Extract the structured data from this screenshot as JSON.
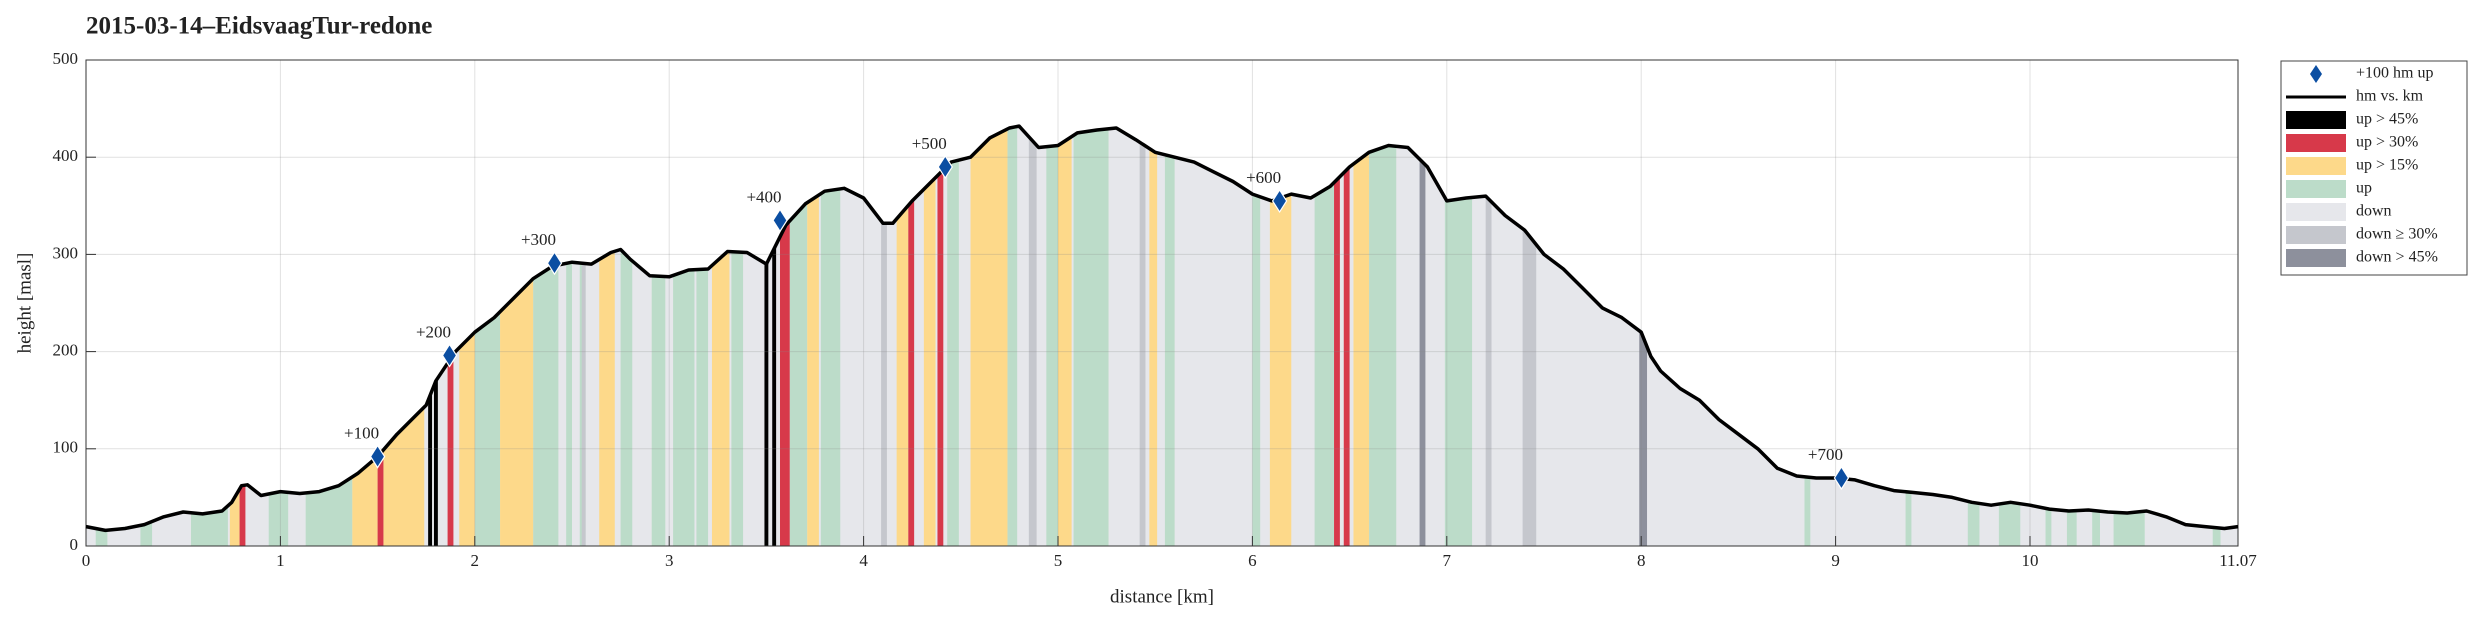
{
  "chart_data": {
    "type": "line",
    "title": "2015-03-14–EidsvaagTur-redone",
    "xlabel": "distance [km]",
    "ylabel": "height [masl]",
    "xlim": [
      0,
      11.07
    ],
    "ylim": [
      0,
      500
    ],
    "xticks": [
      0,
      1,
      2,
      3,
      4,
      5,
      6,
      7,
      8,
      9,
      10,
      11.07
    ],
    "yticks": [
      0,
      100,
      200,
      300,
      400,
      500
    ],
    "grid": true,
    "legend": "outside-right",
    "series": [
      {
        "name": "+100 hm up",
        "color": "#0b4ea2",
        "x": [
          1.5,
          1.87,
          2.41,
          3.57,
          4.42,
          6.14,
          9.03
        ],
        "values": [
          92,
          196,
          291,
          335,
          390,
          355,
          70
        ],
        "labels": [
          "+100",
          "+200",
          "+300",
          "+400",
          "+500",
          "+600",
          "+700"
        ]
      },
      {
        "name": "hm vs. km",
        "color": "#000000",
        "x": [
          0,
          0.1,
          0.2,
          0.3,
          0.4,
          0.5,
          0.6,
          0.7,
          0.75,
          0.8,
          0.83,
          0.9,
          1.0,
          1.1,
          1.2,
          1.3,
          1.4,
          1.5,
          1.6,
          1.7,
          1.75,
          1.8,
          1.9,
          2.0,
          2.1,
          2.2,
          2.3,
          2.4,
          2.5,
          2.6,
          2.7,
          2.75,
          2.8,
          2.9,
          3.0,
          3.1,
          3.2,
          3.3,
          3.4,
          3.5,
          3.55,
          3.6,
          3.7,
          3.8,
          3.9,
          4.0,
          4.1,
          4.15,
          4.25,
          4.35,
          4.45,
          4.55,
          4.65,
          4.75,
          4.8,
          4.9,
          5.0,
          5.1,
          5.2,
          5.3,
          5.4,
          5.5,
          5.6,
          5.7,
          5.8,
          5.9,
          6.0,
          6.1,
          6.2,
          6.3,
          6.4,
          6.5,
          6.6,
          6.7,
          6.8,
          6.9,
          7.0,
          7.1,
          7.2,
          7.3,
          7.4,
          7.5,
          7.6,
          7.7,
          7.8,
          7.9,
          8.0,
          8.05,
          8.1,
          8.2,
          8.3,
          8.4,
          8.5,
          8.6,
          8.7,
          8.8,
          8.9,
          9.0,
          9.1,
          9.2,
          9.3,
          9.4,
          9.5,
          9.6,
          9.7,
          9.8,
          9.9,
          10.0,
          10.1,
          10.2,
          10.3,
          10.4,
          10.5,
          10.6,
          10.7,
          10.8,
          10.9,
          11.0,
          11.07
        ],
        "values": [
          20,
          16,
          18,
          22,
          30,
          35,
          33,
          36,
          45,
          62,
          63,
          52,
          56,
          54,
          56,
          62,
          75,
          92,
          115,
          135,
          145,
          170,
          200,
          220,
          235,
          255,
          275,
          288,
          292,
          290,
          302,
          305,
          295,
          278,
          277,
          284,
          285,
          303,
          302,
          290,
          310,
          330,
          352,
          365,
          368,
          358,
          332,
          332,
          355,
          375,
          395,
          400,
          420,
          430,
          432,
          410,
          412,
          425,
          428,
          430,
          418,
          405,
          400,
          395,
          385,
          375,
          362,
          355,
          362,
          358,
          370,
          390,
          405,
          412,
          410,
          390,
          355,
          358,
          360,
          340,
          325,
          300,
          285,
          265,
          245,
          235,
          220,
          195,
          180,
          162,
          150,
          130,
          115,
          100,
          80,
          72,
          70,
          70,
          68,
          62,
          57,
          55,
          53,
          50,
          45,
          42,
          45,
          42,
          38,
          36,
          37,
          35,
          34,
          36,
          30,
          22,
          20,
          18,
          20
        ]
      },
      {
        "name": "up > 45%",
        "color": "#000000",
        "intervals": [
          [
            1.76,
            1.78
          ],
          [
            1.79,
            1.81
          ],
          [
            3.49,
            3.51
          ],
          [
            3.53,
            3.55
          ]
        ]
      },
      {
        "name": "up > 30%",
        "color": "#d7394a",
        "intervals": [
          [
            0.79,
            0.82
          ],
          [
            1.5,
            1.53
          ],
          [
            1.86,
            1.89
          ],
          [
            3.57,
            3.62
          ],
          [
            4.23,
            4.26
          ],
          [
            4.38,
            4.41
          ],
          [
            6.42,
            6.45
          ],
          [
            6.47,
            6.5
          ]
        ]
      },
      {
        "name": "up > 15%",
        "color": "#fdd98a",
        "intervals": [
          [
            0.74,
            0.79
          ],
          [
            1.37,
            1.5
          ],
          [
            1.53,
            1.74
          ],
          [
            1.92,
            2.0
          ],
          [
            2.13,
            2.3
          ],
          [
            2.64,
            2.72
          ],
          [
            3.22,
            3.31
          ],
          [
            3.71,
            3.77
          ],
          [
            4.17,
            4.23
          ],
          [
            4.31,
            4.37
          ],
          [
            4.55,
            4.74
          ],
          [
            5.0,
            5.07
          ],
          [
            5.47,
            5.51
          ],
          [
            6.09,
            6.2
          ],
          [
            6.52,
            6.6
          ]
        ]
      },
      {
        "name": "up",
        "color": "#bcdcc9",
        "intervals": [
          [
            0.05,
            0.11
          ],
          [
            0.28,
            0.34
          ],
          [
            0.54,
            0.73
          ],
          [
            0.94,
            1.04
          ],
          [
            1.13,
            1.37
          ],
          [
            2.0,
            2.13
          ],
          [
            2.3,
            2.43
          ],
          [
            2.47,
            2.5
          ],
          [
            2.54,
            2.57
          ],
          [
            2.75,
            2.81
          ],
          [
            2.91,
            2.98
          ],
          [
            3.02,
            3.13
          ],
          [
            3.14,
            3.2
          ],
          [
            3.32,
            3.38
          ],
          [
            3.62,
            3.71
          ],
          [
            3.78,
            3.88
          ],
          [
            4.43,
            4.49
          ],
          [
            4.74,
            4.79
          ],
          [
            4.94,
            5.0
          ],
          [
            5.08,
            5.26
          ],
          [
            5.55,
            5.6
          ],
          [
            6.0,
            6.04
          ],
          [
            6.32,
            6.42
          ],
          [
            6.6,
            6.74
          ],
          [
            6.99,
            7.13
          ],
          [
            8.84,
            8.87
          ],
          [
            9.36,
            9.39
          ],
          [
            9.68,
            9.74
          ],
          [
            9.84,
            9.95
          ],
          [
            10.08,
            10.11
          ],
          [
            10.19,
            10.24
          ],
          [
            10.32,
            10.36
          ],
          [
            10.43,
            10.59
          ],
          [
            10.94,
            10.98
          ]
        ]
      },
      {
        "name": "down",
        "color": "#e6e7eb"
      },
      {
        "name": "down ≥ 30%",
        "color": "#c5c7cd",
        "intervals": [
          [
            2.55,
            2.57
          ],
          [
            4.09,
            4.12
          ],
          [
            4.85,
            4.89
          ],
          [
            5.42,
            5.45
          ],
          [
            7.2,
            7.23
          ],
          [
            7.39,
            7.46
          ]
        ]
      },
      {
        "name": "down > 45%",
        "color": "#8d909c",
        "intervals": [
          [
            6.86,
            6.89
          ],
          [
            7.99,
            8.03
          ]
        ]
      }
    ]
  }
}
